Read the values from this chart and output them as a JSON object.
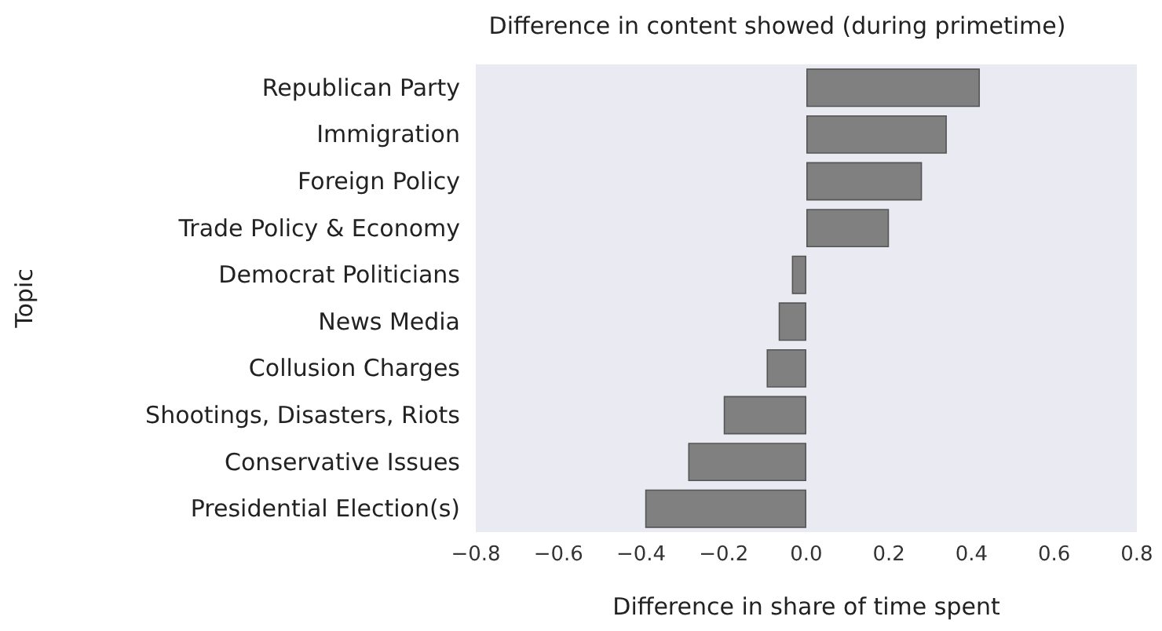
{
  "chart_data": {
    "type": "bar",
    "orientation": "horizontal",
    "title": "Difference in content showed (during primetime)",
    "xlabel": "Difference in share of time spent",
    "ylabel": "Topic",
    "categories": [
      "Republican Party",
      "Immigration",
      "Foreign Policy",
      "Trade Policy & Economy",
      "Democrat Politicians",
      "News Media",
      "Collusion Charges",
      "Shootings, Disasters, Riots",
      "Conservative Issues",
      "Presidential Election(s)"
    ],
    "values": [
      0.42,
      0.34,
      0.28,
      0.2,
      -0.035,
      -0.067,
      -0.096,
      -0.2,
      -0.286,
      -0.39
    ],
    "color": "#808080",
    "xlim": [
      -0.8,
      0.8
    ],
    "xticks": [
      -0.8,
      -0.6,
      -0.4,
      -0.2,
      {
        "value": 0,
        "label": "0.0"
      },
      0.2,
      0.4,
      0.6,
      0.8
    ],
    "grid": false
  }
}
